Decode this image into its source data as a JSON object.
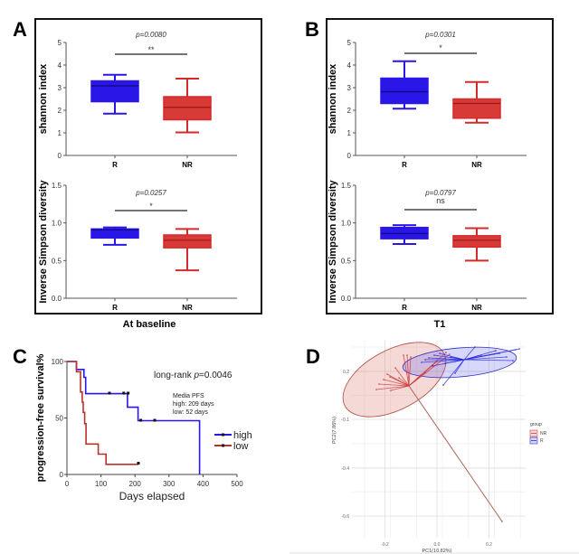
{
  "colors": {
    "R": "#2a16e6",
    "NR": "#d42a2a",
    "high": "#2a16e6",
    "low": "#b8322c",
    "frame": "#111111",
    "axis": "#444444"
  },
  "chart_data": [
    {
      "panel": "A",
      "type": "box",
      "title": "",
      "xlabel": "",
      "ylabel": "shannon index",
      "ylim": [
        0,
        5
      ],
      "yticks": [
        "0",
        "1",
        "2",
        "3",
        "4",
        "5"
      ],
      "categories": [
        "R",
        "NR"
      ],
      "boxes": [
        {
          "group": "R",
          "min": 1.85,
          "q1": 2.38,
          "median": 3.08,
          "q3": 3.3,
          "max": 3.57
        },
        {
          "group": "NR",
          "min": 1.02,
          "q1": 1.58,
          "median": 2.13,
          "q3": 2.6,
          "max": 3.4
        }
      ],
      "p_value": "p=0.0080",
      "significance": "**"
    },
    {
      "panel": "A",
      "type": "box",
      "xlabel": "At baseline",
      "ylabel": "Inverse Simpson diversity",
      "ylim": [
        0,
        1.5
      ],
      "yticks": [
        "0.0",
        "0.5",
        "1.0",
        "1.5"
      ],
      "categories": [
        "R",
        "NR"
      ],
      "boxes": [
        {
          "group": "R",
          "min": 0.71,
          "q1": 0.8,
          "median": 0.91,
          "q3": 0.92,
          "max": 0.94
        },
        {
          "group": "NR",
          "min": 0.37,
          "q1": 0.67,
          "median": 0.77,
          "q3": 0.84,
          "max": 0.92
        }
      ],
      "p_value": "p=0.0257",
      "significance": "*"
    },
    {
      "panel": "B",
      "type": "box",
      "ylabel": "shannon index",
      "ylim": [
        0,
        5
      ],
      "yticks": [
        "0",
        "1",
        "2",
        "3",
        "4",
        "5"
      ],
      "categories": [
        "R",
        "NR"
      ],
      "boxes": [
        {
          "group": "R",
          "min": 2.07,
          "q1": 2.3,
          "median": 2.82,
          "q3": 3.42,
          "max": 4.17
        },
        {
          "group": "NR",
          "min": 1.45,
          "q1": 1.65,
          "median": 2.3,
          "q3": 2.5,
          "max": 3.25
        }
      ],
      "p_value": "p=0.0301",
      "significance": "*"
    },
    {
      "panel": "B",
      "type": "box",
      "xlabel": "T1",
      "ylabel": "Inverse Simpson diversity",
      "ylim": [
        0,
        1.5
      ],
      "yticks": [
        "0.0",
        "0.5",
        "1.0",
        "1.5"
      ],
      "categories": [
        "R",
        "NR"
      ],
      "boxes": [
        {
          "group": "R",
          "min": 0.72,
          "q1": 0.79,
          "median": 0.86,
          "q3": 0.94,
          "max": 0.97
        },
        {
          "group": "NR",
          "min": 0.5,
          "q1": 0.68,
          "median": 0.77,
          "q3": 0.83,
          "max": 0.93
        }
      ],
      "p_value": "p=0.0797",
      "significance": "ns"
    },
    {
      "panel": "C",
      "type": "line",
      "xlabel": "Days elapsed",
      "ylabel": "progression-free survival%",
      "xlim": [
        0,
        500
      ],
      "ylim": [
        0,
        100
      ],
      "xticks": [
        "0",
        "100",
        "200",
        "300",
        "400",
        "500"
      ],
      "yticks": [
        "0",
        "50",
        "100"
      ],
      "annotation": "long-rank p=0.0046",
      "annotation_prefix": "long-rank ",
      "annotation_p": "p",
      "annotation_value": "=0.0046",
      "note_lines": [
        "Media PFS",
        "high: 209 days",
        "low: 52 days"
      ],
      "legend": [
        "high",
        "low"
      ],
      "legend_position": "right",
      "series": [
        {
          "name": "high",
          "steps": [
            [
              0,
              100
            ],
            [
              28,
              100
            ],
            [
              28,
              93
            ],
            [
              50,
              93
            ],
            [
              50,
              86
            ],
            [
              55,
              86
            ],
            [
              55,
              71.5
            ],
            [
              178,
              71.5
            ],
            [
              178,
              59.5
            ],
            [
              209,
              59.5
            ],
            [
              209,
              47.6
            ],
            [
              390,
              47.6
            ],
            [
              390,
              0
            ]
          ],
          "censors": [
            [
              125,
              72
            ],
            [
              167,
              72
            ],
            [
              180,
              72
            ],
            [
              217,
              48
            ],
            [
              258,
              48
            ]
          ]
        },
        {
          "name": "low",
          "steps": [
            [
              0,
              100
            ],
            [
              28,
              100
            ],
            [
              28,
              91
            ],
            [
              40,
              91
            ],
            [
              40,
              73
            ],
            [
              45,
              73
            ],
            [
              45,
              64
            ],
            [
              48,
              64
            ],
            [
              48,
              55
            ],
            [
              52,
              55
            ],
            [
              52,
              45
            ],
            [
              56,
              45
            ],
            [
              56,
              27
            ],
            [
              92,
              27
            ],
            [
              92,
              18
            ],
            [
              115,
              18
            ],
            [
              115,
              9
            ],
            [
              210,
              9
            ]
          ],
          "censors": [
            [
              210,
              10
            ]
          ]
        }
      ]
    },
    {
      "panel": "D",
      "type": "scatter",
      "xlabel": "PC1(10.82%)",
      "ylabel": "PC2(7.86%)",
      "xticks": [
        "-0.2",
        "0.0",
        "0.2"
      ],
      "yticks": [
        "0.2",
        "-0.1",
        "-0.4",
        "-0.6"
      ],
      "legend_title": "group",
      "legend": [
        "NR",
        "R"
      ],
      "legend_position": "right",
      "centroids": {
        "NR": [
          -0.1,
          0.16
        ],
        "R": [
          0.1,
          0.24
        ]
      },
      "points": {
        "NR": [
          [
            -0.21,
            0.15
          ],
          [
            -0.19,
            0.16
          ],
          [
            -0.18,
            0.14
          ],
          [
            -0.17,
            0.18
          ],
          [
            -0.16,
            0.2
          ],
          [
            -0.15,
            0.13
          ],
          [
            -0.14,
            0.17
          ],
          [
            -0.13,
            0.24
          ],
          [
            -0.12,
            0.11
          ],
          [
            -0.2,
            0.09
          ],
          [
            -0.08,
            0.25
          ],
          [
            0.04,
            0.26
          ],
          [
            0.05,
            0.28
          ],
          [
            0.25,
            -0.63
          ]
        ],
        "R": [
          [
            -0.04,
            0.22
          ],
          [
            -0.02,
            0.24
          ],
          [
            0.02,
            0.22
          ],
          [
            0.03,
            0.15
          ],
          [
            0.05,
            0.25
          ],
          [
            0.08,
            0.23
          ],
          [
            0.13,
            0.26
          ],
          [
            0.17,
            0.27
          ],
          [
            0.2,
            0.28
          ],
          [
            0.23,
            0.25
          ],
          [
            0.25,
            0.27
          ],
          [
            0.16,
            0.22
          ]
        ]
      }
    }
  ],
  "panels": {
    "A": {
      "letter": "A",
      "subtitle": "At baseline"
    },
    "B": {
      "letter": "B",
      "subtitle": "T1"
    },
    "C": {
      "letter": "C"
    },
    "D": {
      "letter": "D"
    }
  }
}
